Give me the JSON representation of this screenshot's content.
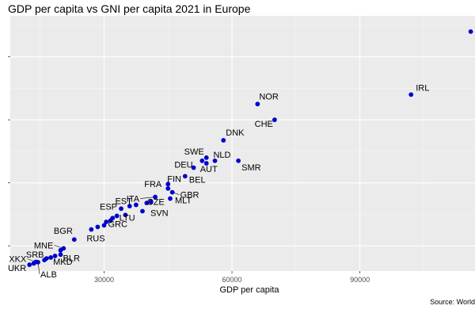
{
  "chart_data": {
    "type": "scatter",
    "title": "GDP per capita vs GNI per capita 2021 in Europe",
    "xlabel": "GDP per capita",
    "ylabel": "",
    "source": "Source: World",
    "x_ticks": [
      30000,
      60000,
      90000
    ],
    "x_tick_labels": [
      "30000",
      "60000",
      "90000"
    ],
    "y_ticks": [
      20000,
      40000,
      60000,
      80000
    ],
    "y_tick_labels": [
      "",
      "",
      "",
      ""
    ],
    "xlim": [
      8000,
      117000
    ],
    "ylim": [
      12000,
      93000
    ],
    "grid": true,
    "point_color": "#0000CC",
    "points": [
      {
        "label": "",
        "x": 116000,
        "y": 88000
      },
      {
        "label": "IRL",
        "x": 102000,
        "y": 68000
      },
      {
        "label": "NOR",
        "x": 66000,
        "y": 65000
      },
      {
        "label": "CHE",
        "x": 70000,
        "y": 60000
      },
      {
        "label": "DNK",
        "x": 58000,
        "y": 53500
      },
      {
        "label": "SWE",
        "x": 54000,
        "y": 48000
      },
      {
        "label": "NLD",
        "x": 56000,
        "y": 47000
      },
      {
        "label": "",
        "x": 53000,
        "y": 47000
      },
      {
        "label": "DEU",
        "x": 51000,
        "y": 44800
      },
      {
        "label": "AUT",
        "x": 54000,
        "y": 46200
      },
      {
        "label": "SMR",
        "x": 61500,
        "y": 47000
      },
      {
        "label": "BEL",
        "x": 49000,
        "y": 42100
      },
      {
        "label": "FIN",
        "x": 45000,
        "y": 39600
      },
      {
        "label": "FRA",
        "x": 45000,
        "y": 38200
      },
      {
        "label": "GBR",
        "x": 46000,
        "y": 37000
      },
      {
        "label": "ITA",
        "x": 42000,
        "y": 35500
      },
      {
        "label": "MLT",
        "x": 45500,
        "y": 35000
      },
      {
        "label": "CZE",
        "x": 41000,
        "y": 34000
      },
      {
        "label": "",
        "x": 40000,
        "y": 33600
      },
      {
        "label": "EST",
        "x": 37500,
        "y": 33000
      },
      {
        "label": "",
        "x": 36000,
        "y": 32600
      },
      {
        "label": "ESP",
        "x": 34000,
        "y": 31800
      },
      {
        "label": "SVN",
        "x": 39000,
        "y": 31000
      },
      {
        "label": "LTU",
        "x": 33000,
        "y": 29500
      },
      {
        "label": "",
        "x": 35000,
        "y": 29800
      },
      {
        "label": "",
        "x": 32000,
        "y": 28800
      },
      {
        "label": "",
        "x": 31500,
        "y": 28000
      },
      {
        "label": "",
        "x": 30500,
        "y": 27600
      },
      {
        "label": "GRC",
        "x": 30000,
        "y": 26500
      },
      {
        "label": "",
        "x": 28500,
        "y": 26000
      },
      {
        "label": "RUS",
        "x": 27000,
        "y": 25200
      },
      {
        "label": "BGR",
        "x": 23000,
        "y": 22000
      },
      {
        "label": "MNE",
        "x": 20500,
        "y": 19200
      },
      {
        "label": "",
        "x": 19800,
        "y": 18600
      },
      {
        "label": "SRB",
        "x": 18500,
        "y": 16800
      },
      {
        "label": "BLR",
        "x": 19800,
        "y": 17200
      },
      {
        "label": "",
        "x": 17500,
        "y": 16300
      },
      {
        "label": "",
        "x": 16500,
        "y": 16000
      },
      {
        "label": "MKD",
        "x": 16000,
        "y": 15500
      },
      {
        "label": "XKX",
        "x": 14000,
        "y": 14900
      },
      {
        "label": "",
        "x": 13500,
        "y": 14400
      },
      {
        "label": "ALB",
        "x": 14500,
        "y": 14800
      },
      {
        "label": "UKR",
        "x": 12500,
        "y": 14000
      }
    ]
  }
}
